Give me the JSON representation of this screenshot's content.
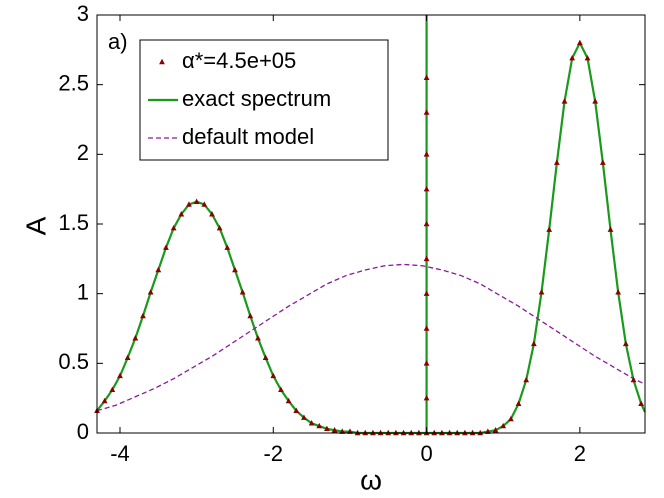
{
  "chart_data": {
    "type": "line",
    "annotation": "a)",
    "x_label": "ω",
    "y_label": "A",
    "xlim": [
      -4.3,
      2.85
    ],
    "ylim": [
      0,
      3
    ],
    "xticks": [
      -4,
      -2,
      0,
      2
    ],
    "yticks": [
      0,
      0.5,
      1,
      1.5,
      2,
      2.5,
      3
    ],
    "legend": "upper left",
    "series": [
      {
        "name": "α*=4.5e+05",
        "color": "#8b0000",
        "style": "markers",
        "x": [
          -4.3,
          -4.2,
          -4.1,
          -4.0,
          -3.9,
          -3.8,
          -3.7,
          -3.6,
          -3.5,
          -3.4,
          -3.3,
          -3.2,
          -3.1,
          -3.0,
          -2.9,
          -2.8,
          -2.7,
          -2.6,
          -2.5,
          -2.4,
          -2.3,
          -2.2,
          -2.1,
          -2.0,
          -1.9,
          -1.8,
          -1.7,
          -1.6,
          -1.5,
          -1.4,
          -1.3,
          -1.2,
          -1.1,
          -1.0,
          -0.9,
          -0.8,
          -0.7,
          -0.6,
          -0.5,
          -0.4,
          -0.3,
          -0.2,
          -0.1,
          0,
          0,
          0,
          0,
          0,
          0,
          0,
          0,
          0,
          0,
          0,
          0.1,
          0.2,
          0.3,
          0.4,
          0.5,
          0.6,
          0.7,
          0.8,
          0.9,
          1.0,
          1.1,
          1.2,
          1.3,
          1.4,
          1.5,
          1.6,
          1.7,
          1.8,
          1.9,
          2.0,
          2.1,
          2.2,
          2.3,
          2.4,
          2.5,
          2.6,
          2.7,
          2.8
        ],
        "values": [
          0.16,
          0.23,
          0.31,
          0.41,
          0.54,
          0.68,
          0.84,
          1.01,
          1.17,
          1.33,
          1.47,
          1.57,
          1.64,
          1.66,
          1.64,
          1.57,
          1.47,
          1.33,
          1.17,
          1.01,
          0.84,
          0.68,
          0.54,
          0.41,
          0.31,
          0.23,
          0.16,
          0.11,
          0.07,
          0.05,
          0.03,
          0.02,
          0.01,
          0.01,
          0,
          0,
          0,
          0,
          0,
          0,
          0,
          0,
          0,
          0,
          0.25,
          0.5,
          0.75,
          1.0,
          1.25,
          1.5,
          1.75,
          2.0,
          2.3,
          2.55,
          0,
          0,
          0,
          0,
          0,
          0,
          0,
          0.01,
          0.02,
          0.05,
          0.1,
          0.21,
          0.38,
          0.64,
          1.01,
          1.46,
          1.94,
          2.38,
          2.69,
          2.8,
          2.69,
          2.38,
          1.94,
          1.46,
          1.01,
          0.64,
          0.38,
          0.21
        ]
      },
      {
        "name": "exact spectrum",
        "color": "#1a9a1a",
        "style": "solid",
        "x": [
          -4.3,
          -4.2,
          -4.1,
          -4.0,
          -3.9,
          -3.8,
          -3.7,
          -3.6,
          -3.5,
          -3.4,
          -3.3,
          -3.2,
          -3.1,
          -3.0,
          -2.9,
          -2.8,
          -2.7,
          -2.6,
          -2.5,
          -2.4,
          -2.3,
          -2.2,
          -2.1,
          -2.0,
          -1.9,
          -1.8,
          -1.7,
          -1.6,
          -1.5,
          -1.4,
          -1.3,
          -1.2,
          -1.1,
          -1.0,
          -0.9,
          -0.8,
          -0.7,
          -0.6,
          -0.5,
          -0.4,
          -0.3,
          -0.2,
          -0.1,
          0,
          0,
          0,
          0.1,
          0.2,
          0.3,
          0.4,
          0.5,
          0.6,
          0.7,
          0.8,
          0.9,
          1.0,
          1.1,
          1.2,
          1.3,
          1.4,
          1.5,
          1.6,
          1.7,
          1.8,
          1.9,
          2.0,
          2.1,
          2.2,
          2.3,
          2.4,
          2.5,
          2.6,
          2.7,
          2.8,
          2.85
        ],
        "values": [
          0.16,
          0.23,
          0.31,
          0.41,
          0.54,
          0.68,
          0.84,
          1.01,
          1.17,
          1.33,
          1.47,
          1.57,
          1.64,
          1.66,
          1.64,
          1.57,
          1.47,
          1.33,
          1.17,
          1.01,
          0.84,
          0.68,
          0.54,
          0.41,
          0.31,
          0.23,
          0.16,
          0.11,
          0.07,
          0.05,
          0.03,
          0.02,
          0.01,
          0.01,
          0,
          0,
          0,
          0,
          0,
          0,
          0,
          0,
          0,
          0,
          3,
          0,
          0,
          0,
          0,
          0,
          0,
          0,
          0,
          0.01,
          0.02,
          0.05,
          0.1,
          0.21,
          0.38,
          0.64,
          1.01,
          1.46,
          1.94,
          2.38,
          2.69,
          2.8,
          2.69,
          2.38,
          1.94,
          1.46,
          1.01,
          0.64,
          0.38,
          0.21,
          0.15
        ]
      },
      {
        "name": "default model",
        "color": "#8b1a9a",
        "style": "dashed",
        "x": [
          -4.3,
          -4.05,
          -3.8,
          -3.55,
          -3.3,
          -3.05,
          -2.8,
          -2.55,
          -2.3,
          -2.05,
          -1.8,
          -1.55,
          -1.3,
          -1.05,
          -0.8,
          -0.55,
          -0.3,
          -0.05,
          0.2,
          0.45,
          0.7,
          0.95,
          1.2,
          1.45,
          1.7,
          1.95,
          2.2,
          2.45,
          2.7,
          2.85
        ],
        "values": [
          0.16,
          0.2,
          0.26,
          0.32,
          0.39,
          0.47,
          0.55,
          0.64,
          0.73,
          0.82,
          0.91,
          0.99,
          1.07,
          1.13,
          1.17,
          1.2,
          1.21,
          1.2,
          1.17,
          1.13,
          1.07,
          0.99,
          0.91,
          0.82,
          0.73,
          0.64,
          0.55,
          0.47,
          0.39,
          0.35
        ]
      }
    ]
  }
}
